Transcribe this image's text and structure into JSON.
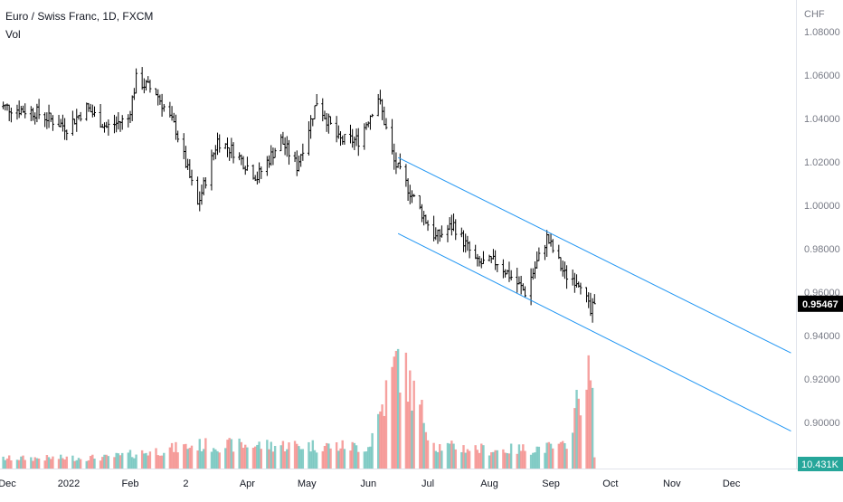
{
  "legend": {
    "symbol_line": "Euro / Swiss Franc, 1D, FXCM",
    "volume_label": "Vol"
  },
  "price_axis": {
    "currency": "CHF",
    "ticks": [
      "1.08000",
      "1.06000",
      "1.04000",
      "1.02000",
      "1.00000",
      "0.98000",
      "0.96000",
      "0.94000",
      "0.92000",
      "0.90000"
    ],
    "current_price_label": "0.95467",
    "current_volume_label": "10.431K"
  },
  "time_axis": {
    "labels": [
      "Dec",
      "2022",
      "Feb",
      "2",
      "Apr",
      "May",
      "Jun",
      "Jul",
      "Aug",
      "Sep",
      "Oct",
      "Nov",
      "Dec"
    ]
  },
  "colors": {
    "up_volume": "#26a69a",
    "down_volume": "#ef5350",
    "candle": "#000000",
    "channel": "#2196f3",
    "axis_text": "#787b86",
    "price_label_bg": "#000000"
  },
  "chart_data": {
    "type": "candlestick",
    "title": "Euro / Swiss Franc, 1D, FXCM",
    "ylabel": "CHF",
    "ylim": [
      0.885,
      1.085
    ],
    "grid": false,
    "price_path": [
      {
        "date": "2021-11-25",
        "close": 1.046
      },
      {
        "date": "2021-12-15",
        "close": 1.043
      },
      {
        "date": "2021-12-31",
        "close": 1.036
      },
      {
        "date": "2022-01-10",
        "close": 1.045
      },
      {
        "date": "2022-01-20",
        "close": 1.036
      },
      {
        "date": "2022-01-31",
        "close": 1.04
      },
      {
        "date": "2022-02-04",
        "close": 1.058
      },
      {
        "date": "2022-02-14",
        "close": 1.052
      },
      {
        "date": "2022-02-24",
        "close": 1.035
      },
      {
        "date": "2022-03-07",
        "close": 1.0
      },
      {
        "date": "2022-03-17",
        "close": 1.03
      },
      {
        "date": "2022-03-25",
        "close": 1.025
      },
      {
        "date": "2022-04-06",
        "close": 1.013
      },
      {
        "date": "2022-04-18",
        "close": 1.03
      },
      {
        "date": "2022-04-26",
        "close": 1.018
      },
      {
        "date": "2022-05-06",
        "close": 1.048
      },
      {
        "date": "2022-05-17",
        "close": 1.03
      },
      {
        "date": "2022-05-27",
        "close": 1.03
      },
      {
        "date": "2022-06-06",
        "close": 1.05
      },
      {
        "date": "2022-06-14",
        "close": 1.02
      },
      {
        "date": "2022-06-24",
        "close": 1.003
      },
      {
        "date": "2022-07-05",
        "close": 0.985
      },
      {
        "date": "2022-07-14",
        "close": 0.991
      },
      {
        "date": "2022-07-26",
        "close": 0.973
      },
      {
        "date": "2022-08-05",
        "close": 0.974
      },
      {
        "date": "2022-08-19",
        "close": 0.96
      },
      {
        "date": "2022-08-30",
        "close": 0.985
      },
      {
        "date": "2022-09-08",
        "close": 0.968
      },
      {
        "date": "2022-09-16",
        "close": 0.965
      },
      {
        "date": "2022-09-21",
        "close": 0.95
      },
      {
        "date": "2022-09-23",
        "close": 0.9547
      }
    ],
    "volume_path": [
      {
        "date": "2021-11-25",
        "volume": 3.0
      },
      {
        "date": "2022-01-20",
        "volume": 3.3
      },
      {
        "date": "2022-03-07",
        "volume": 7.0
      },
      {
        "date": "2022-04-26",
        "volume": 7.0
      },
      {
        "date": "2022-06-01",
        "volume": 6.5
      },
      {
        "date": "2022-06-16",
        "volume": 33.0
      },
      {
        "date": "2022-07-05",
        "volume": 6.8
      },
      {
        "date": "2022-08-05",
        "volume": 5.5
      },
      {
        "date": "2022-09-08",
        "volume": 6.5
      },
      {
        "date": "2022-09-19",
        "volume": 29.0
      },
      {
        "date": "2022-09-22",
        "volume": 23.0
      },
      {
        "date": "2022-09-23",
        "volume": 10.431
      }
    ],
    "channel_lines": [
      {
        "name": "upper",
        "start": {
          "date": "2022-06-16",
          "price": 1.022
        },
        "end": {
          "date": "2022-12-31",
          "price": 0.932
        }
      },
      {
        "name": "lower",
        "start": {
          "date": "2022-06-16",
          "price": 0.987
        },
        "end": {
          "date": "2022-12-31",
          "price": 0.896
        }
      }
    ],
    "last_price": 0.95467,
    "last_volume": "10.431K"
  }
}
